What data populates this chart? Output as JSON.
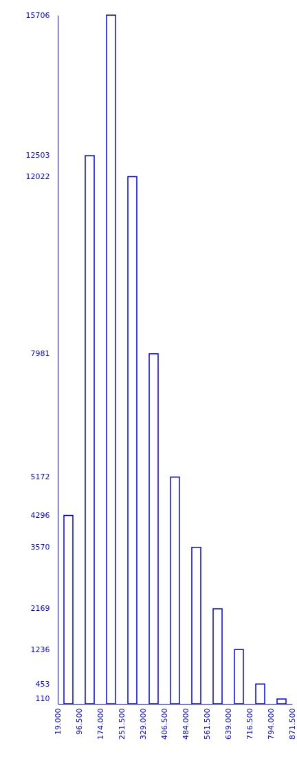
{
  "chart_data": {
    "type": "histogram",
    "bins": [
      19,
      96.5,
      174,
      251.5,
      329,
      406.5,
      484,
      561.5,
      639,
      716.5,
      794,
      871.5
    ],
    "values": [
      4296,
      12503,
      15706,
      12022,
      7981,
      5172,
      3570,
      2169,
      1236,
      453,
      110
    ],
    "color": "#0000ff",
    "xlim": [
      19,
      871.5
    ],
    "xticks": [
      {
        "value": 19,
        "label": "19.000"
      },
      {
        "value": 96.5,
        "label": "96.500"
      },
      {
        "value": 174,
        "label": "174.000"
      },
      {
        "value": 251.5,
        "label": "251.500"
      },
      {
        "value": 329,
        "label": "329.000"
      },
      {
        "value": 406.5,
        "label": "406.500"
      },
      {
        "value": 484,
        "label": "484.000"
      },
      {
        "value": 561.5,
        "label": "561.500"
      },
      {
        "value": 639,
        "label": "639.000"
      },
      {
        "value": 716.5,
        "label": "716.500"
      },
      {
        "value": 794,
        "label": "794.000"
      },
      {
        "value": 871.5,
        "label": "871.500"
      }
    ],
    "ylim": [
      0,
      15706
    ],
    "yticks": [
      110,
      453,
      1236,
      2169,
      3570,
      4296,
      5172,
      7981,
      12022,
      12503,
      15706
    ]
  }
}
